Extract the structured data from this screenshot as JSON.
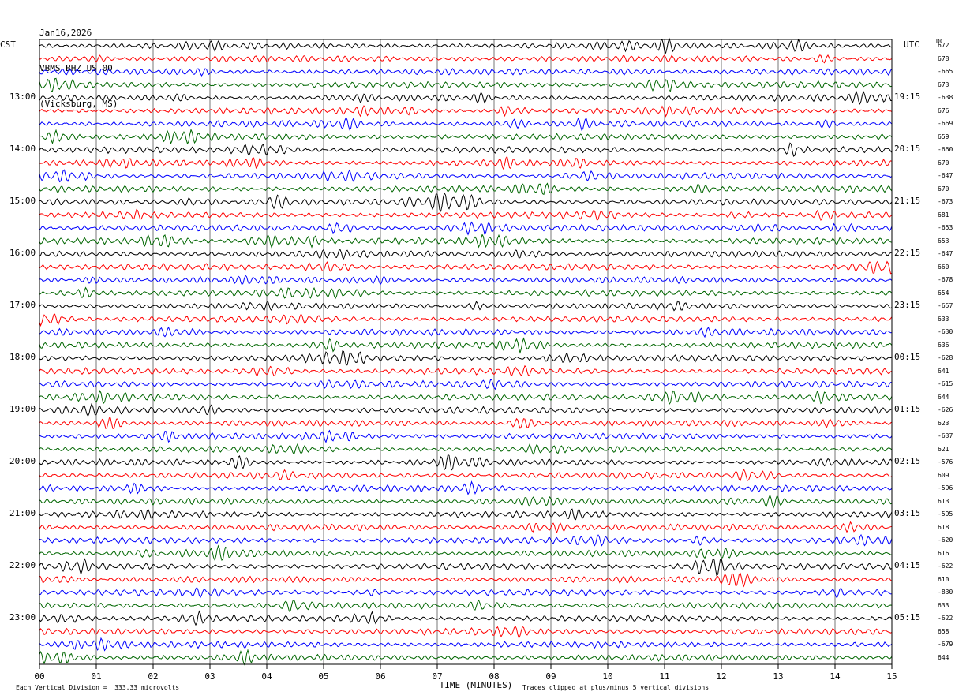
{
  "header": {
    "date": "Jan16,2026",
    "station": "VBMS BHZ US 00",
    "location": "(Vicksburg, MS)"
  },
  "left_axis_title": "CST",
  "right_axis_title": "UTC",
  "dc_title": "DC",
  "footer": {
    "left": "Each Vertical Division =  333.33 microvolts",
    "right": "Traces clipped at plus/minus 5 vertical divisions"
  },
  "colors": [
    "#000000",
    "#ff0000",
    "#0000ff",
    "#006600"
  ],
  "chart_data": {
    "type": "line",
    "title": "",
    "xlabel": "TIME (MINUTES)",
    "x_ticks": [
      "00",
      "01",
      "02",
      "03",
      "04",
      "05",
      "06",
      "07",
      "08",
      "09",
      "10",
      "11",
      "12",
      "13",
      "14",
      "15"
    ],
    "xlim": [
      0,
      15
    ],
    "grid": "vertical minute lines",
    "traces_per_hour": 4,
    "hour_labels_cst": [
      "13:00",
      "14:00",
      "15:00",
      "16:00",
      "17:00",
      "18:00",
      "19:00",
      "20:00",
      "21:00",
      "22:00",
      "23:00"
    ],
    "hour_labels_utc": [
      "19:15",
      "20:15",
      "21:15",
      "22:15",
      "23:15",
      "00:15",
      "01:15",
      "02:15",
      "03:15",
      "04:15",
      "05:15"
    ],
    "dc_offsets": [
      "672",
      "678",
      "-665",
      "673",
      "-638",
      "676",
      "-669",
      "659",
      "-660",
      "670",
      "-647",
      "670",
      "-673",
      "681",
      "-653",
      "653",
      "-647",
      "660",
      "-678",
      "654",
      "-657",
      "633",
      "-630",
      "636",
      "-628",
      "641",
      "-615",
      "644",
      "-626",
      "623",
      "-637",
      "621",
      "-576",
      "609",
      "-596",
      "613",
      "-595",
      "618",
      "-620",
      "616",
      "-622",
      "610",
      "-830",
      "633",
      "-622",
      "658",
      "-679",
      "644"
    ],
    "series": [
      {
        "name": "",
        "color": "#000000"
      },
      {
        "name": "",
        "color": "#ff0000"
      },
      {
        "name": "",
        "color": "#0000ff"
      },
      {
        "name": "",
        "color": "#006600"
      }
    ]
  }
}
